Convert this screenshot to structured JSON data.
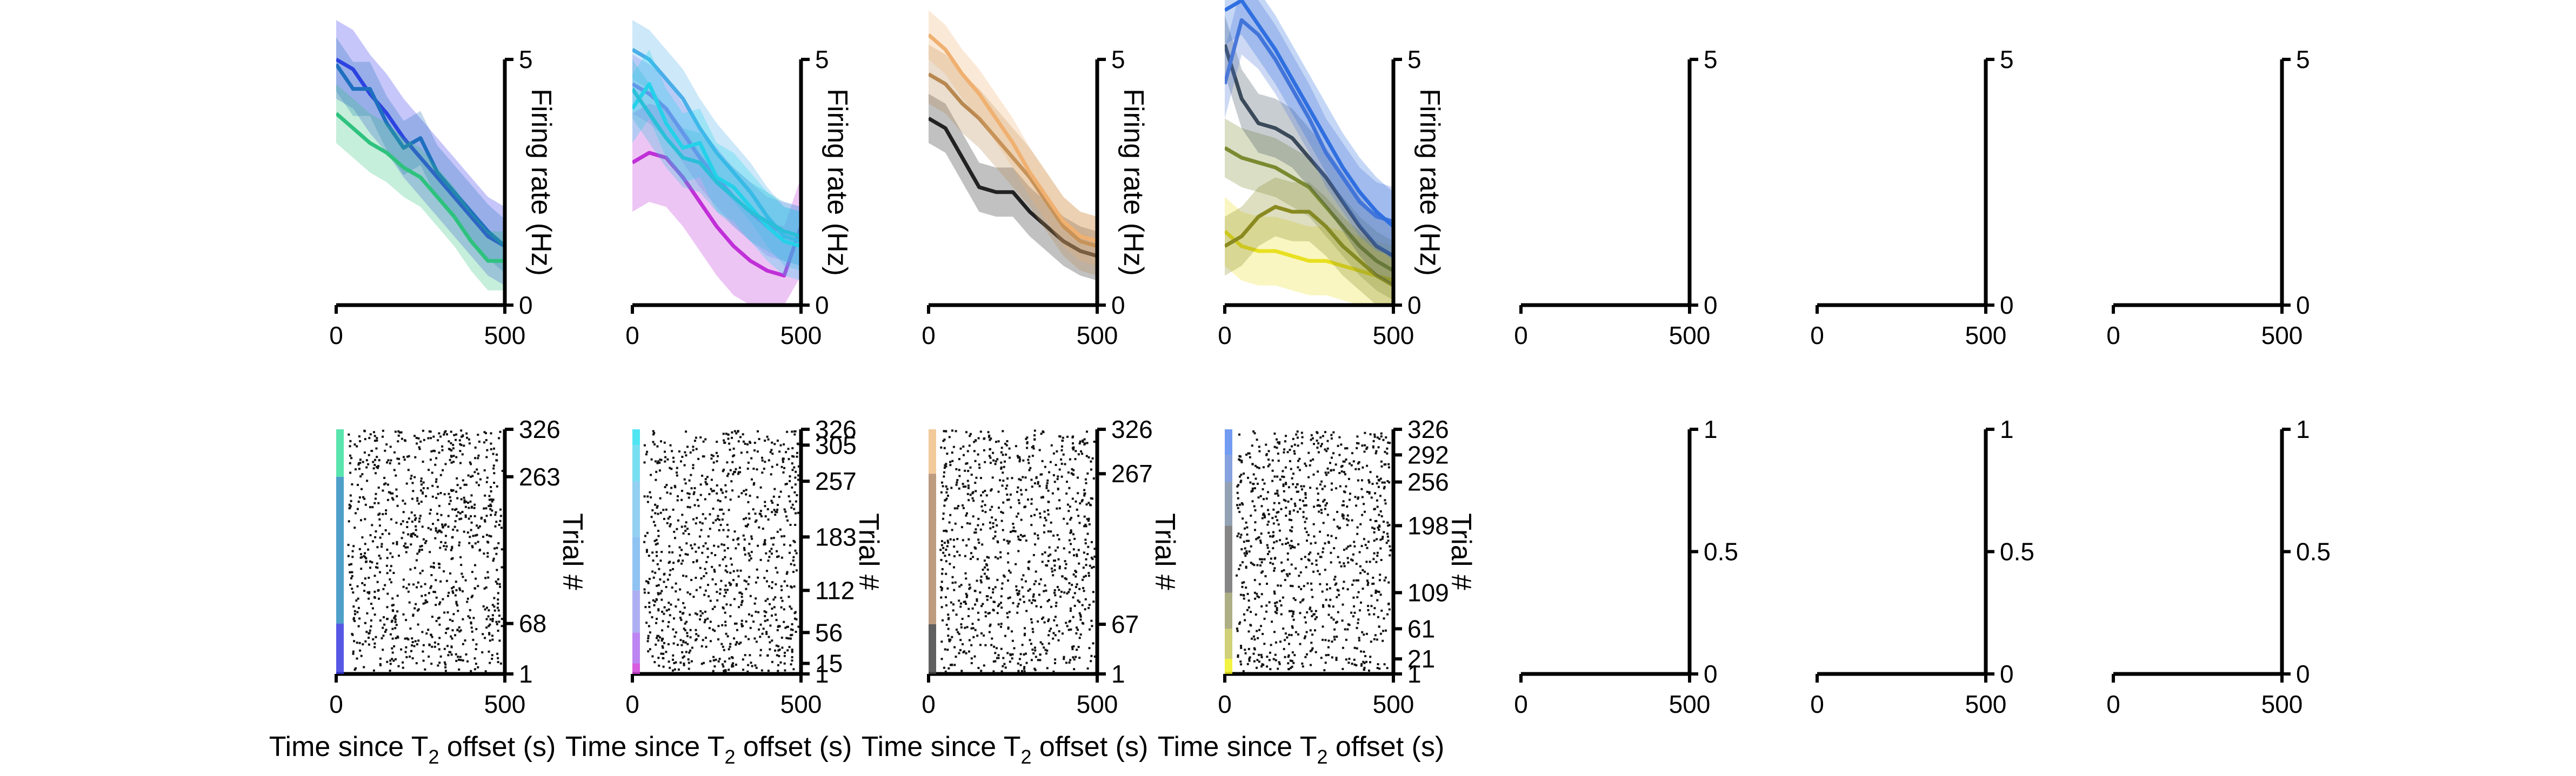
{
  "chart_data": {
    "type": "line",
    "xlabel": "Time since T",
    "xlabel_sub": "2",
    "xlabel_tail": " offset (s)",
    "top_ylabel": "Firing rate (Hz)",
    "bottom_ylabel": "Trial #",
    "x_ticks": [
      "0",
      "500"
    ],
    "x_range": [
      0,
      500
    ],
    "top_ylim": [
      0,
      5
    ],
    "top_yticks": [
      "0",
      "5"
    ],
    "empty_bottom_yticks": [
      "0",
      "0.5",
      "1"
    ],
    "panels": [
      {
        "series": [
          {
            "color": "#3333ee",
            "x": [
              0,
              50,
              100,
              150,
              200,
              250,
              300,
              350,
              400,
              450,
              500
            ],
            "y": [
              5.0,
              4.8,
              4.3,
              3.9,
              3.4,
              3.0,
              2.6,
              2.2,
              1.8,
              1.4,
              1.2
            ],
            "err": 0.8
          },
          {
            "color": "#1f6fc0",
            "x": [
              0,
              50,
              100,
              150,
              200,
              250,
              300,
              350,
              400,
              450,
              500
            ],
            "y": [
              4.9,
              4.4,
              4.4,
              3.7,
              3.2,
              3.4,
              2.7,
              2.3,
              1.9,
              1.5,
              1.2
            ],
            "err": 0.55
          },
          {
            "color": "#2ec27e",
            "x": [
              0,
              50,
              100,
              150,
              200,
              250,
              300,
              350,
              400,
              450,
              500
            ],
            "y": [
              3.9,
              3.6,
              3.3,
              3.1,
              2.8,
              2.6,
              2.2,
              1.8,
              1.3,
              0.9,
              0.9
            ],
            "err": 0.6
          }
        ],
        "raster": {
          "ticks": [
            "326",
            "263",
            "68",
            "1"
          ],
          "tick_values": [
            326,
            263,
            68,
            1
          ],
          "groups": [
            {
              "from": 1,
              "to": 68,
              "color": "#3a3ae0"
            },
            {
              "from": 68,
              "to": 263,
              "color": "#2f8fbf"
            },
            {
              "from": 263,
              "to": 326,
              "color": "#3ce0a0"
            }
          ]
        }
      },
      {
        "series": [
          {
            "color": "#c030d8",
            "x": [
              0,
              50,
              100,
              150,
              200,
              250,
              300,
              350,
              400,
              450,
              500
            ],
            "y": [
              2.9,
              3.1,
              3.0,
              2.6,
              2.1,
              1.6,
              1.2,
              0.9,
              0.7,
              0.6,
              1.6
            ],
            "err": 1.0
          },
          {
            "color": "#9a6cf0",
            "x": [
              0,
              50,
              100,
              150,
              200,
              250,
              300,
              350,
              400,
              450,
              500
            ],
            "y": [
              4.5,
              4.3,
              4.0,
              3.5,
              3.0,
              2.6,
              2.2,
              1.9,
              1.6,
              1.5,
              1.4
            ],
            "err": 0.6
          },
          {
            "color": "#4aaee8",
            "x": [
              0,
              50,
              100,
              150,
              200,
              250,
              300,
              350,
              400,
              450,
              500
            ],
            "y": [
              5.2,
              5.0,
              4.6,
              4.2,
              3.6,
              3.1,
              2.7,
              2.3,
              1.8,
              1.4,
              1.3
            ],
            "err": 0.6
          },
          {
            "color": "#22d8f0",
            "x": [
              0,
              50,
              100,
              150,
              200,
              250,
              300,
              350,
              400,
              450,
              500
            ],
            "y": [
              4.0,
              4.5,
              3.7,
              3.2,
              3.3,
              2.6,
              2.4,
              2.0,
              1.6,
              1.3,
              1.2
            ],
            "err": 0.7
          },
          {
            "color": "#2abfd8",
            "x": [
              0,
              50,
              100,
              150,
              200,
              250,
              300,
              350,
              400,
              450,
              500
            ],
            "y": [
              4.4,
              3.9,
              3.4,
              3.0,
              2.9,
              2.5,
              2.2,
              1.9,
              1.7,
              1.5,
              1.4
            ],
            "err": 0.6
          }
        ],
        "raster": {
          "ticks": [
            "326",
            "305",
            "257",
            "183",
            "112",
            "56",
            "15",
            "1"
          ],
          "tick_values": [
            326,
            305,
            257,
            183,
            112,
            56,
            15,
            1
          ],
          "groups": [
            {
              "from": 1,
              "to": 15,
              "color": "#d040d8"
            },
            {
              "from": 15,
              "to": 56,
              "color": "#b070f0"
            },
            {
              "from": 56,
              "to": 112,
              "color": "#a0a0f0"
            },
            {
              "from": 112,
              "to": 183,
              "color": "#7ab8f0"
            },
            {
              "from": 183,
              "to": 257,
              "color": "#80c8f0"
            },
            {
              "from": 257,
              "to": 305,
              "color": "#60d8f0"
            },
            {
              "from": 305,
              "to": 326,
              "color": "#30e0f0"
            }
          ]
        }
      },
      {
        "series": [
          {
            "color": "#222222",
            "x": [
              0,
              50,
              100,
              150,
              200,
              250,
              300,
              350,
              400,
              450,
              500
            ],
            "y": [
              3.8,
              3.6,
              3.0,
              2.4,
              2.3,
              2.3,
              1.9,
              1.6,
              1.3,
              1.1,
              1.0
            ],
            "err": 0.5
          },
          {
            "color": "#b88850",
            "x": [
              0,
              50,
              100,
              150,
              200,
              250,
              300,
              350,
              400,
              450,
              500
            ],
            "y": [
              4.7,
              4.5,
              4.1,
              3.8,
              3.4,
              3.0,
              2.6,
              2.1,
              1.6,
              1.3,
              1.2
            ],
            "err": 0.6
          },
          {
            "color": "#f0b070",
            "x": [
              0,
              50,
              100,
              150,
              200,
              250,
              300,
              350,
              400,
              450,
              500
            ],
            "y": [
              5.5,
              5.2,
              4.7,
              4.3,
              3.8,
              3.3,
              2.7,
              2.2,
              1.7,
              1.4,
              1.3
            ],
            "err": 0.5
          }
        ],
        "raster": {
          "ticks": [
            "326",
            "267",
            "67",
            "1"
          ],
          "tick_values": [
            326,
            267,
            67,
            1
          ],
          "groups": [
            {
              "from": 1,
              "to": 67,
              "color": "#444444"
            },
            {
              "from": 67,
              "to": 267,
              "color": "#b08a68"
            },
            {
              "from": 267,
              "to": 326,
              "color": "#f0c088"
            }
          ]
        }
      },
      {
        "series": [
          {
            "color": "#e8e020",
            "x": [
              0,
              50,
              100,
              150,
              200,
              250,
              300,
              350,
              400,
              450,
              500
            ],
            "y": [
              1.5,
              1.2,
              1.1,
              1.1,
              1.0,
              0.9,
              0.9,
              0.8,
              0.7,
              0.6,
              0.5
            ],
            "err": 0.7
          },
          {
            "color": "#8a8a20",
            "x": [
              0,
              50,
              100,
              150,
              200,
              250,
              300,
              350,
              400,
              450,
              500
            ],
            "y": [
              1.2,
              1.4,
              1.8,
              2.0,
              1.9,
              1.9,
              1.6,
              1.2,
              0.9,
              0.6,
              0.4
            ],
            "err": 0.6
          },
          {
            "color": "#7a8a30",
            "x": [
              0,
              50,
              100,
              150,
              200,
              250,
              300,
              350,
              400,
              450,
              500
            ],
            "y": [
              3.2,
              3.0,
              2.9,
              2.8,
              2.6,
              2.4,
              2.0,
              1.6,
              1.2,
              0.9,
              0.7
            ],
            "err": 0.6
          },
          {
            "color": "#3a4a5a",
            "x": [
              0,
              50,
              100,
              150,
              200,
              250,
              300,
              350,
              400,
              450,
              500
            ],
            "y": [
              5.3,
              4.2,
              3.7,
              3.6,
              3.4,
              3.0,
              2.6,
              2.1,
              1.6,
              1.2,
              1.0
            ],
            "err": 0.6
          },
          {
            "color": "#4a78d8",
            "x": [
              0,
              50,
              100,
              150,
              200,
              250,
              300,
              350,
              400,
              450,
              500
            ],
            "y": [
              4.5,
              5.8,
              5.5,
              5.0,
              4.4,
              3.8,
              3.1,
              2.6,
              2.1,
              1.8,
              1.7
            ],
            "err": 0.7
          },
          {
            "color": "#2f6fe0",
            "x": [
              0,
              50,
              100,
              150,
              200,
              250,
              300,
              350,
              400,
              450,
              500
            ],
            "y": [
              6.0,
              6.2,
              5.7,
              5.2,
              4.6,
              4.0,
              3.4,
              2.8,
              2.3,
              1.9,
              1.6
            ],
            "err": 0.7
          }
        ],
        "raster": {
          "ticks": [
            "326",
            "292",
            "256",
            "198",
            "109",
            "61",
            "21",
            "1"
          ],
          "tick_values": [
            326,
            292,
            256,
            198,
            109,
            61,
            21,
            1
          ],
          "groups": [
            {
              "from": 1,
              "to": 21,
              "color": "#f0f020"
            },
            {
              "from": 21,
              "to": 61,
              "color": "#c8c860"
            },
            {
              "from": 61,
              "to": 109,
              "color": "#a0a070"
            },
            {
              "from": 109,
              "to": 198,
              "color": "#707070"
            },
            {
              "from": 198,
              "to": 256,
              "color": "#8090a8"
            },
            {
              "from": 256,
              "to": 292,
              "color": "#7090d8"
            },
            {
              "from": 292,
              "to": 326,
              "color": "#5a8af0"
            }
          ]
        }
      },
      {
        "series": [],
        "raster": null
      },
      {
        "series": [],
        "raster": null
      },
      {
        "series": [],
        "raster": null
      }
    ]
  }
}
